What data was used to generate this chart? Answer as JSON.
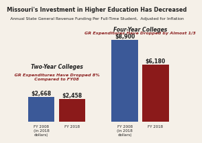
{
  "title": "Missouri's Investment in Higher Education Has Decreased",
  "subtitle": "Annual State General Revenue Funding Per Full-Time Student,  Adjusted for Inflation",
  "two_year_label": "Two-Year Colleges",
  "two_year_sublabel": "GR Expenditures Have Dropped 8%\nCompared to FY08",
  "four_year_label": "Four-Year Colleges",
  "four_year_sublabel": "GR Expenditures Have Dropped by Almost 1/3",
  "categories": [
    "FY 2008\n(in 2018\ndollars)",
    "FY 2018",
    "FY 2008\n(in 2018\ndollars)",
    "FY 2018"
  ],
  "values": [
    2668,
    2458,
    8900,
    6180
  ],
  "bar_labels": [
    "$2,668",
    "$2,458",
    "$8,900",
    "$6,180"
  ],
  "bar_colors": [
    "#3b5998",
    "#8b1a1a",
    "#3b5998",
    "#8b1a1a"
  ],
  "blue_color": "#3a5882",
  "red_color": "#8b2020",
  "bg_color": "#f5f0e8",
  "title_color": "#222222",
  "subtitle_color": "#222222",
  "annotation_color": "#8b2020",
  "label_color": "#222222"
}
